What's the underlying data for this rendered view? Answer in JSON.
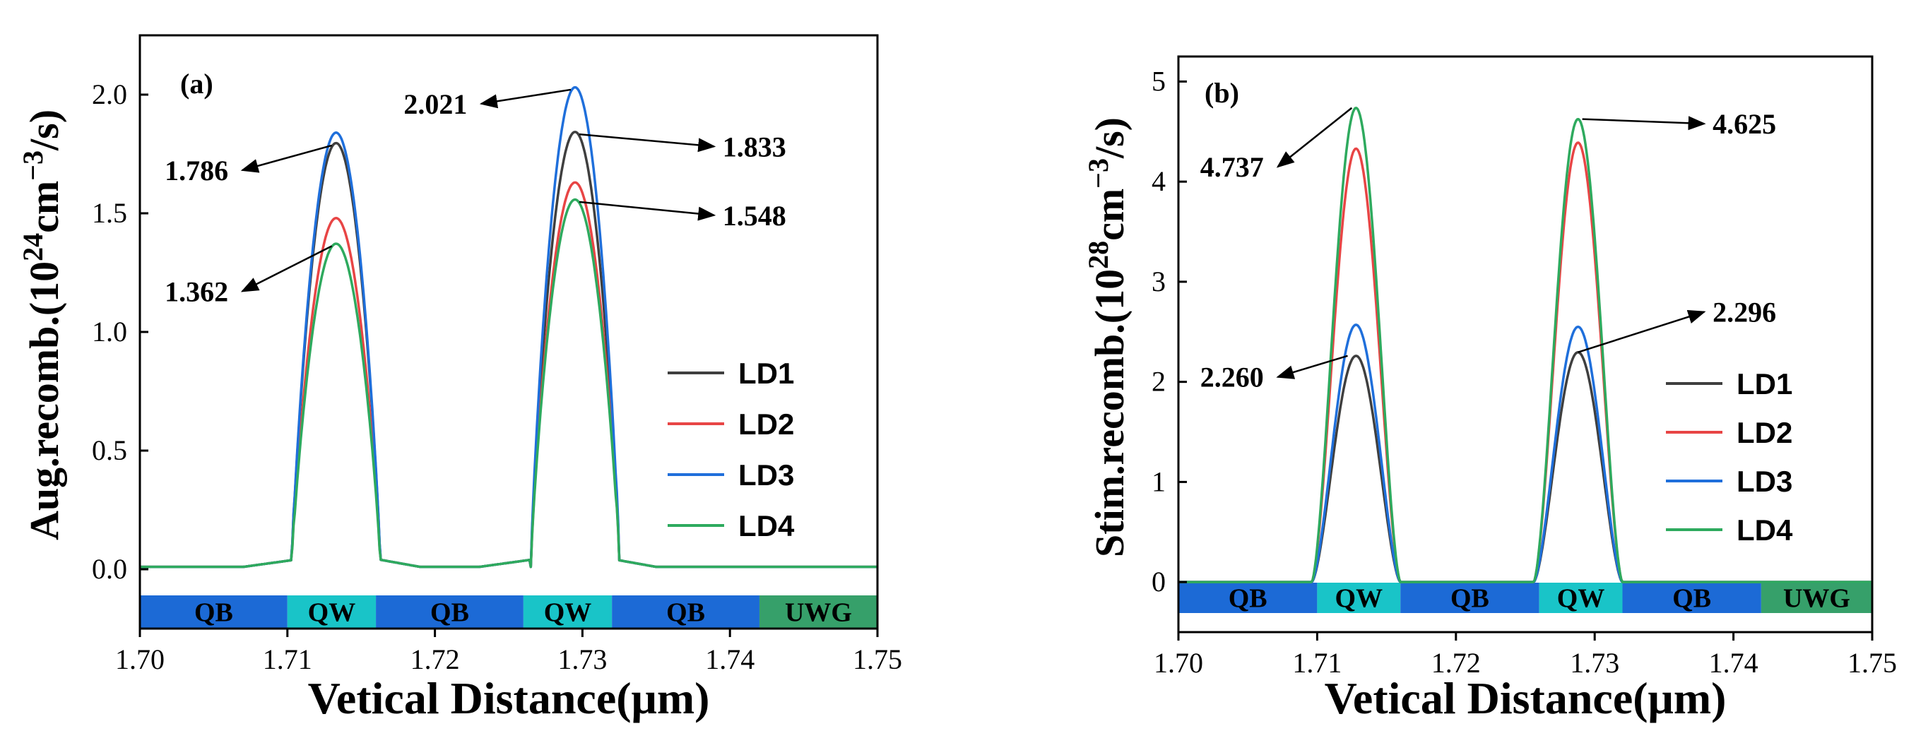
{
  "chart_data": [
    {
      "type": "line",
      "panel_label": "(a)",
      "xlabel": "Vetical Distance(μm)",
      "ylabel_main": "Aug.recomb.(10",
      "ylabel_exp1": "24",
      "ylabel_mid": "cm",
      "ylabel_exp2": "−3",
      "ylabel_end": "/s)",
      "xlim": [
        1.7,
        1.75
      ],
      "ylim": [
        -0.25,
        2.25
      ],
      "xticks": [
        "1.70",
        "1.71",
        "1.72",
        "1.73",
        "1.74",
        "1.75"
      ],
      "yticks": [
        "0.0",
        "0.5",
        "1.0",
        "1.5",
        "2.0"
      ],
      "regions": [
        {
          "label": "QB",
          "from": 1.7,
          "to": 1.71,
          "color": "#1c6ad6"
        },
        {
          "label": "QW",
          "from": 1.71,
          "to": 1.716,
          "color": "#19c4c8"
        },
        {
          "label": "QB",
          "from": 1.716,
          "to": 1.726,
          "color": "#1c6ad6"
        },
        {
          "label": "QW",
          "from": 1.726,
          "to": 1.732,
          "color": "#19c4c8"
        },
        {
          "label": "QB",
          "from": 1.732,
          "to": 1.742,
          "color": "#1c6ad6"
        },
        {
          "label": "UWG",
          "from": 1.742,
          "to": 1.75,
          "color": "#36a06a"
        }
      ],
      "series": [
        {
          "name": "LD1",
          "color": "#3f3f3f",
          "peak1": 1.786,
          "peak2": 1.833
        },
        {
          "name": "LD2",
          "color": "#e84545",
          "peak1": 1.47,
          "peak2": 1.62
        },
        {
          "name": "LD3",
          "color": "#1f6fdb",
          "peak1": 1.83,
          "peak2": 2.021
        },
        {
          "name": "LD4",
          "color": "#2eaa5e",
          "peak1": 1.362,
          "peak2": 1.548
        }
      ],
      "annotations": [
        {
          "text": "1.786",
          "x": 1.7133,
          "y": 1.786,
          "tx": 1.7035,
          "ty": 1.64
        },
        {
          "text": "1.362",
          "x": 1.7133,
          "y": 1.362,
          "tx": 1.7035,
          "ty": 1.13
        },
        {
          "text": "2.021",
          "x": 1.7295,
          "y": 2.021,
          "tx": 1.7197,
          "ty": 1.92
        },
        {
          "text": "1.833",
          "x": 1.7295,
          "y": 1.833,
          "tx": 1.7395,
          "ty": 1.74
        },
        {
          "text": "1.548",
          "x": 1.7295,
          "y": 1.548,
          "tx": 1.7395,
          "ty": 1.45
        }
      ]
    },
    {
      "type": "line",
      "panel_label": "(b)",
      "xlabel": "Vetical Distance(μm)",
      "ylabel_main": "Stim.recomb.(10",
      "ylabel_exp1": "28",
      "ylabel_mid": "cm",
      "ylabel_exp2": "−3",
      "ylabel_end": "/s)",
      "xlim": [
        1.7,
        1.75
      ],
      "ylim": [
        -0.5,
        5.25
      ],
      "xticks": [
        "1.70",
        "1.71",
        "1.72",
        "1.73",
        "1.74",
        "1.75"
      ],
      "yticks": [
        "0",
        "1",
        "2",
        "3",
        "4",
        "5"
      ],
      "regions": [
        {
          "label": "QB",
          "from": 1.7,
          "to": 1.71,
          "color": "#1c6ad6"
        },
        {
          "label": "QW",
          "from": 1.71,
          "to": 1.716,
          "color": "#19c4c8"
        },
        {
          "label": "QB",
          "from": 1.716,
          "to": 1.726,
          "color": "#1c6ad6"
        },
        {
          "label": "QW",
          "from": 1.726,
          "to": 1.732,
          "color": "#19c4c8"
        },
        {
          "label": "QB",
          "from": 1.732,
          "to": 1.742,
          "color": "#1c6ad6"
        },
        {
          "label": "UWG",
          "from": 1.742,
          "to": 1.75,
          "color": "#36a06a"
        }
      ],
      "series": [
        {
          "name": "LD1",
          "color": "#3f3f3f",
          "peak1": 2.26,
          "peak2": 2.296
        },
        {
          "name": "LD2",
          "color": "#e84545",
          "peak1": 4.33,
          "peak2": 4.39
        },
        {
          "name": "LD3",
          "color": "#1f6fdb",
          "peak1": 2.57,
          "peak2": 2.55
        },
        {
          "name": "LD4",
          "color": "#2eaa5e",
          "peak1": 4.737,
          "peak2": 4.625
        }
      ],
      "annotations": [
        {
          "text": "4.737",
          "x": 1.7128,
          "y": 4.737,
          "tx": 1.7035,
          "ty": 4.05
        },
        {
          "text": "4.625",
          "x": 1.7288,
          "y": 4.625,
          "tx": 1.7385,
          "ty": 4.48
        },
        {
          "text": "2.260",
          "x": 1.7125,
          "y": 2.26,
          "tx": 1.7035,
          "ty": 1.95
        },
        {
          "text": "2.296",
          "x": 1.7285,
          "y": 2.296,
          "tx": 1.7385,
          "ty": 2.6
        }
      ]
    }
  ]
}
